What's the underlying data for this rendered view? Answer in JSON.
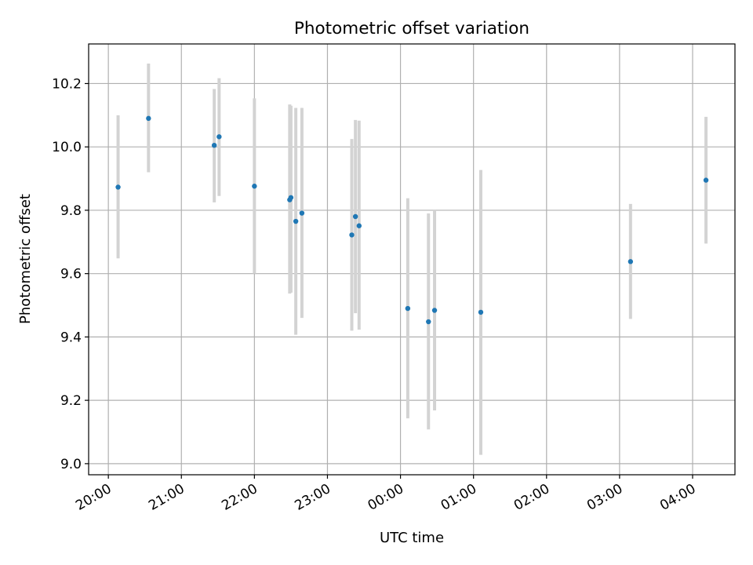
{
  "chart_data": {
    "type": "scatter",
    "title": "Photometric offset variation",
    "xlabel": "UTC time",
    "ylabel": "Photometric offset",
    "x_tick_labels": [
      "20:00",
      "21:00",
      "22:00",
      "23:00",
      "00:00",
      "01:00",
      "02:00",
      "03:00",
      "04:00"
    ],
    "x_ticks_hours": [
      0,
      1,
      2,
      3,
      4,
      5,
      6,
      7,
      8
    ],
    "x_origin": "20:00",
    "xlim_hours": [
      -0.27,
      8.58
    ],
    "y_tick_labels": [
      "9.0",
      "9.2",
      "9.4",
      "9.6",
      "9.8",
      "10.0",
      "10.2"
    ],
    "y_ticks": [
      9.0,
      9.2,
      9.4,
      9.6,
      9.8,
      10.0,
      10.2
    ],
    "ylim": [
      8.965,
      10.325
    ],
    "grid": true,
    "point_color": "#1f77b4",
    "errorbar_color": "#d3d3d3",
    "points": [
      {
        "x": "20:08",
        "y": 9.873,
        "err_low": 9.648,
        "err_high": 10.1
      },
      {
        "x": "20:33",
        "y": 10.09,
        "err_low": 9.92,
        "err_high": 10.263
      },
      {
        "x": "21:27",
        "y": 10.005,
        "err_low": 9.825,
        "err_high": 10.183
      },
      {
        "x": "21:31",
        "y": 10.032,
        "err_low": 9.845,
        "err_high": 10.217
      },
      {
        "x": "22:00",
        "y": 9.876,
        "err_low": 9.6,
        "err_high": 10.153
      },
      {
        "x": "22:29",
        "y": 9.833,
        "err_low": 9.537,
        "err_high": 10.134
      },
      {
        "x": "22:30",
        "y": 9.84,
        "err_low": 9.54,
        "err_high": 10.13
      },
      {
        "x": "22:34",
        "y": 9.765,
        "err_low": 9.407,
        "err_high": 10.123
      },
      {
        "x": "22:39",
        "y": 9.791,
        "err_low": 9.46,
        "err_high": 10.123
      },
      {
        "x": "23:20",
        "y": 9.722,
        "err_low": 9.42,
        "err_high": 10.025
      },
      {
        "x": "23:23",
        "y": 9.78,
        "err_low": 9.475,
        "err_high": 10.085
      },
      {
        "x": "23:26",
        "y": 9.751,
        "err_low": 9.423,
        "err_high": 10.083
      },
      {
        "x": "00:06",
        "y": 9.49,
        "err_low": 9.143,
        "err_high": 9.838
      },
      {
        "x": "00:23",
        "y": 9.448,
        "err_low": 9.108,
        "err_high": 9.79
      },
      {
        "x": "00:28",
        "y": 9.484,
        "err_low": 9.168,
        "err_high": 9.8
      },
      {
        "x": "01:06",
        "y": 9.478,
        "err_low": 9.028,
        "err_high": 9.927
      },
      {
        "x": "03:09",
        "y": 9.638,
        "err_low": 9.457,
        "err_high": 9.82
      },
      {
        "x": "04:11",
        "y": 9.895,
        "err_low": 9.695,
        "err_high": 10.095
      }
    ]
  }
}
